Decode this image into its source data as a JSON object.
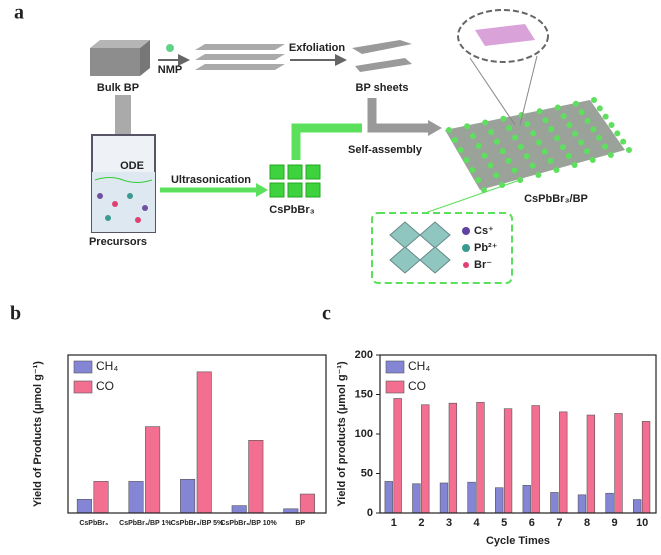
{
  "schematic": {
    "panel_label": "a",
    "bulk": "Bulk BP",
    "solvent": "NMP",
    "exfoliation": "Exfoliation",
    "sheets": "BP sheets",
    "self_assembly": "Self-assembly",
    "ode": "ODE",
    "ultrasonication": "Ultrasonication",
    "precursors": "Precursors",
    "perovskite": "CsPbBr₃",
    "composite": "CsPbBr₃/BP",
    "cs": "Cs⁺",
    "pb": "Pb²⁺",
    "br": "Br⁻"
  },
  "chart_data": [
    {
      "type": "bar",
      "panel_label": "b",
      "y_label": "Yield of Products (μmol g⁻¹)",
      "categories": [
        "CsPbBr₃",
        "CsPbBr₃/BP 1%",
        "CsPbBr₃/BP 5%",
        "CsPbBr₃/BP 10%",
        "BP"
      ],
      "series": [
        {
          "name": "CH₄",
          "color": "#8585d6",
          "values": [
            13,
            30,
            32,
            7,
            4
          ]
        },
        {
          "name": "CO",
          "color": "#f36f92",
          "values": [
            30,
            82,
            134,
            69,
            18
          ]
        }
      ],
      "ylim": [
        0,
        150
      ],
      "legend": "upper left"
    },
    {
      "type": "bar",
      "panel_label": "c",
      "y_label": "Yield of products (μmol g⁻¹)",
      "x_label": "Cycle Times",
      "categories": [
        "1",
        "2",
        "3",
        "4",
        "5",
        "6",
        "7",
        "8",
        "9",
        "10"
      ],
      "series": [
        {
          "name": "CH₄",
          "color": "#8585d6",
          "values": [
            40,
            37,
            38,
            39,
            32,
            35,
            26,
            23,
            25,
            17
          ]
        },
        {
          "name": "CO",
          "color": "#f36f92",
          "values": [
            145,
            137,
            139,
            140,
            132,
            136,
            128,
            124,
            126,
            116
          ]
        }
      ],
      "ylim": [
        0,
        200
      ],
      "yticks": [
        0,
        50,
        100,
        150,
        200
      ],
      "legend": "upper left"
    }
  ]
}
